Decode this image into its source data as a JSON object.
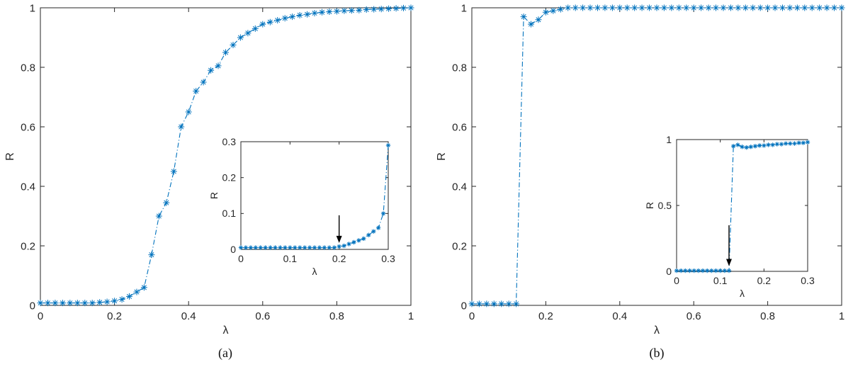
{
  "figure": {
    "background": "#ffffff",
    "panel_labels": [
      "(a)",
      "(b)"
    ]
  },
  "chart_data": [
    {
      "id": "panel-a-main",
      "type": "line",
      "title": "",
      "panel": "a",
      "role": "main-axes",
      "xlabel": "λ",
      "ylabel": "R",
      "xlim": [
        0,
        1
      ],
      "ylim": [
        0,
        1
      ],
      "grid": false,
      "legend": false,
      "line_style": "dash-dot",
      "marker": "asterisk",
      "color": "#0072BD",
      "xticks": [
        0,
        0.2,
        0.4,
        0.6,
        0.8,
        1
      ],
      "xtick_labels": [
        "0",
        "0.2",
        "0.4",
        "0.6",
        "0.8",
        "1"
      ],
      "yticks": [
        0,
        0.2,
        0.4,
        0.6,
        0.8,
        1
      ],
      "ytick_labels": [
        "0",
        "0.2",
        "0.4",
        "0.6",
        "0.8",
        "1"
      ],
      "x": [
        0,
        0.02,
        0.04,
        0.06,
        0.08,
        0.1,
        0.12,
        0.14,
        0.16,
        0.18,
        0.2,
        0.22,
        0.24,
        0.26,
        0.28,
        0.3,
        0.32,
        0.34,
        0.36,
        0.38,
        0.4,
        0.42,
        0.44,
        0.46,
        0.48,
        0.5,
        0.52,
        0.54,
        0.56,
        0.58,
        0.6,
        0.62,
        0.64,
        0.66,
        0.68,
        0.7,
        0.72,
        0.74,
        0.76,
        0.78,
        0.8,
        0.82,
        0.84,
        0.86,
        0.88,
        0.9,
        0.92,
        0.94,
        0.96,
        0.98,
        1
      ],
      "y": [
        0.008,
        0.008,
        0.008,
        0.008,
        0.008,
        0.008,
        0.008,
        0.008,
        0.01,
        0.012,
        0.015,
        0.02,
        0.03,
        0.045,
        0.06,
        0.17,
        0.3,
        0.345,
        0.45,
        0.6,
        0.65,
        0.72,
        0.75,
        0.79,
        0.805,
        0.85,
        0.875,
        0.9,
        0.915,
        0.93,
        0.945,
        0.952,
        0.958,
        0.965,
        0.97,
        0.975,
        0.978,
        0.982,
        0.985,
        0.987,
        0.988,
        0.99,
        0.991,
        0.992,
        0.994,
        0.995,
        0.996,
        0.997,
        0.998,
        0.999,
        1
      ]
    },
    {
      "id": "panel-a-inset",
      "type": "line",
      "title": "",
      "panel": "a",
      "role": "inset-axes",
      "xlabel": "λ",
      "ylabel": "R",
      "xlim": [
        0,
        0.3
      ],
      "ylim": [
        0,
        0.3
      ],
      "grid": false,
      "legend": false,
      "line_style": "dash-dot",
      "marker": "asterisk",
      "color": "#0072BD",
      "xticks": [
        0,
        0.1,
        0.2,
        0.3
      ],
      "xtick_labels": [
        "0",
        "0.1",
        "0.2",
        "0.3"
      ],
      "yticks": [
        0,
        0.1,
        0.2,
        0.3
      ],
      "ytick_labels": [
        "0",
        "0.1",
        "0.2",
        "0.3"
      ],
      "x": [
        0,
        0.01,
        0.02,
        0.03,
        0.04,
        0.05,
        0.06,
        0.07,
        0.08,
        0.09,
        0.1,
        0.11,
        0.12,
        0.13,
        0.14,
        0.15,
        0.16,
        0.17,
        0.18,
        0.19,
        0.2,
        0.21,
        0.22,
        0.23,
        0.24,
        0.25,
        0.26,
        0.27,
        0.28,
        0.29,
        0.3
      ],
      "y": [
        0.005,
        0.005,
        0.005,
        0.005,
        0.005,
        0.005,
        0.005,
        0.005,
        0.005,
        0.005,
        0.005,
        0.005,
        0.005,
        0.005,
        0.005,
        0.005,
        0.005,
        0.005,
        0.005,
        0.005,
        0.008,
        0.01,
        0.015,
        0.02,
        0.025,
        0.03,
        0.04,
        0.05,
        0.06,
        0.1,
        0.29
      ],
      "annotation": {
        "type": "arrow",
        "x": 0.2,
        "y_tail": 0.095,
        "y_tip": 0.018
      }
    },
    {
      "id": "panel-b-main",
      "type": "line",
      "title": "",
      "panel": "b",
      "role": "main-axes",
      "xlabel": "λ",
      "ylabel": "R",
      "xlim": [
        0,
        1
      ],
      "ylim": [
        0,
        1
      ],
      "grid": false,
      "legend": false,
      "line_style": "dash-dot",
      "marker": "asterisk",
      "color": "#0072BD",
      "xticks": [
        0,
        0.2,
        0.4,
        0.6,
        0.8,
        1
      ],
      "xtick_labels": [
        "0",
        "0.2",
        "0.4",
        "0.6",
        "0.8",
        "1"
      ],
      "yticks": [
        0,
        0.2,
        0.4,
        0.6,
        0.8,
        1
      ],
      "ytick_labels": [
        "0",
        "0.2",
        "0.4",
        "0.6",
        "0.8",
        "1"
      ],
      "x": [
        0,
        0.02,
        0.04,
        0.06,
        0.08,
        0.1,
        0.12,
        0.14,
        0.16,
        0.18,
        0.2,
        0.22,
        0.24,
        0.26,
        0.28,
        0.3,
        0.32,
        0.34,
        0.36,
        0.38,
        0.4,
        0.42,
        0.44,
        0.46,
        0.48,
        0.5,
        0.52,
        0.54,
        0.56,
        0.58,
        0.6,
        0.62,
        0.64,
        0.66,
        0.68,
        0.7,
        0.72,
        0.74,
        0.76,
        0.78,
        0.8,
        0.82,
        0.84,
        0.86,
        0.88,
        0.9,
        0.92,
        0.94,
        0.96,
        0.98,
        1
      ],
      "y": [
        0.005,
        0.005,
        0.005,
        0.005,
        0.005,
        0.005,
        0.005,
        0.97,
        0.945,
        0.96,
        0.985,
        0.99,
        0.995,
        1,
        1,
        1,
        1,
        1,
        1,
        1,
        1,
        1,
        1,
        1,
        1,
        1,
        1,
        1,
        1,
        1,
        1,
        1,
        1,
        1,
        1,
        1,
        1,
        1,
        1,
        1,
        1,
        1,
        1,
        1,
        1,
        1,
        1,
        1,
        1,
        1,
        1
      ]
    },
    {
      "id": "panel-b-inset",
      "type": "line",
      "title": "",
      "panel": "b",
      "role": "inset-axes",
      "xlabel": "λ",
      "ylabel": "R",
      "xlim": [
        0,
        0.3
      ],
      "ylim": [
        0,
        1
      ],
      "grid": false,
      "legend": false,
      "line_style": "dash-dot",
      "marker": "asterisk",
      "color": "#0072BD",
      "xticks": [
        0,
        0.1,
        0.2,
        0.3
      ],
      "xtick_labels": [
        "0",
        "0.1",
        "0.2",
        "0.3"
      ],
      "yticks": [
        0,
        0.5,
        1
      ],
      "ytick_labels": [
        "0",
        "0.5",
        "1"
      ],
      "x": [
        0,
        0.01,
        0.02,
        0.03,
        0.04,
        0.05,
        0.06,
        0.07,
        0.08,
        0.09,
        0.1,
        0.11,
        0.12,
        0.13,
        0.14,
        0.15,
        0.16,
        0.17,
        0.18,
        0.19,
        0.2,
        0.21,
        0.22,
        0.23,
        0.24,
        0.25,
        0.26,
        0.27,
        0.28,
        0.29,
        0.3
      ],
      "y": [
        0.005,
        0.005,
        0.005,
        0.005,
        0.005,
        0.005,
        0.005,
        0.005,
        0.005,
        0.005,
        0.005,
        0.005,
        0.005,
        0.95,
        0.96,
        0.945,
        0.94,
        0.945,
        0.95,
        0.955,
        0.955,
        0.96,
        0.96,
        0.965,
        0.965,
        0.97,
        0.97,
        0.97,
        0.975,
        0.975,
        0.98
      ],
      "annotation": {
        "type": "arrow",
        "x": 0.12,
        "y_tail": 0.35,
        "y_tip": 0.04
      }
    }
  ]
}
